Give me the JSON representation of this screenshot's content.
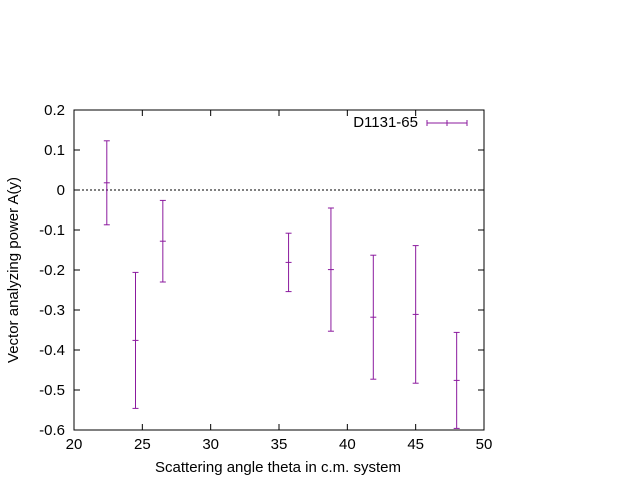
{
  "chart_data": {
    "type": "scatter",
    "title": "",
    "xlabel": "Scattering angle theta in c.m. system",
    "ylabel": "Vector analyzing power A(y)",
    "xlim": [
      20,
      50
    ],
    "ylim": [
      -0.6,
      0.2
    ],
    "x_ticks": [
      20,
      25,
      30,
      35,
      40,
      45,
      50
    ],
    "y_ticks": [
      0.2,
      0.1,
      0,
      -0.1,
      -0.2,
      -0.3,
      -0.4,
      -0.5,
      -0.6
    ],
    "x_tick_labels": [
      "20",
      "25",
      "30",
      "35",
      "40",
      "45",
      "50"
    ],
    "y_tick_labels": [
      "0.2",
      "0.1",
      "0",
      "-0.1",
      "-0.2",
      "-0.3",
      "-0.4",
      "-0.5",
      "-0.6"
    ],
    "zero_line": true,
    "grid": false,
    "legend_position": "top-right",
    "series": [
      {
        "name": "D1131-65",
        "color": "#8b1a9e",
        "points": [
          {
            "x": 22.4,
            "y": 0.018,
            "err": 0.105
          },
          {
            "x": 24.5,
            "y": -0.376,
            "err": 0.17
          },
          {
            "x": 26.5,
            "y": -0.128,
            "err": 0.102
          },
          {
            "x": 35.7,
            "y": -0.181,
            "err": 0.073
          },
          {
            "x": 38.8,
            "y": -0.199,
            "err": 0.154
          },
          {
            "x": 41.9,
            "y": -0.318,
            "err": 0.155
          },
          {
            "x": 45.0,
            "y": -0.311,
            "err": 0.172
          },
          {
            "x": 48.0,
            "y": -0.476,
            "err": 0.12
          }
        ]
      }
    ]
  }
}
